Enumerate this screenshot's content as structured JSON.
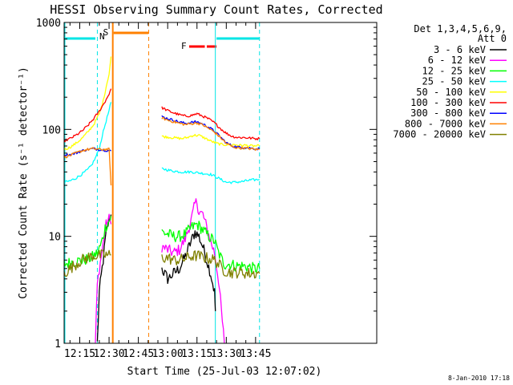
{
  "chart_data": {
    "type": "line",
    "title": "HESSI Observing Summary Count Rates, Corrected",
    "xlabel": "Start Time (25-Jul-03 12:07:02)",
    "ylabel": "Corrected Count Rate (s⁻¹ detector⁻¹)",
    "footer": "8-Jan-2010 17:18",
    "x_unit": "minutes since 12:00 UT",
    "xlim": [
      7.0,
      167.0
    ],
    "ylim": [
      1,
      1000
    ],
    "yscale": "log",
    "x_ticks": [
      {
        "label": "12:15",
        "x": 15
      },
      {
        "label": "12:30",
        "x": 30
      },
      {
        "label": "12:45",
        "x": 45
      },
      {
        "label": "13:00",
        "x": 60
      },
      {
        "label": "13:15",
        "x": 75
      },
      {
        "label": "13:30",
        "x": 90
      },
      {
        "label": "13:45",
        "x": 105
      }
    ],
    "y_ticks": [
      {
        "label": "1",
        "y": 1
      },
      {
        "label": "10",
        "y": 10
      },
      {
        "label": "100",
        "y": 100
      },
      {
        "label": "1000",
        "y": 1000
      }
    ],
    "legend": {
      "header": "Det 1,3,4,5,6,9,",
      "header2": "Att 0",
      "placement": "right"
    },
    "flags": {
      "night_color": "#00e5e5",
      "saa_color": "#ff8000",
      "flare_color": "#ff0000",
      "night_label": "N",
      "saa_label": "S",
      "flare_label": "F",
      "night_bars": [
        [
          7.0,
          23.0
        ],
        [
          85.0,
          107.0
        ]
      ],
      "saa_bars": [
        [
          32.3,
          50.2
        ]
      ],
      "flare_bars": [
        [
          71.0,
          79.0
        ],
        [
          80.0,
          85.0
        ]
      ],
      "night_lines": [
        7.2,
        24.0,
        84.4,
        107.0
      ],
      "saa_lines": [
        31.9,
        50.3
      ]
    },
    "series": [
      {
        "name": "3 - 6 keV",
        "color": "#000000",
        "segments": [
          [
            [
              24.0,
              1.0
            ],
            [
              25,
              3
            ],
            [
              27,
              6
            ],
            [
              28,
              9
            ],
            [
              29,
              12
            ],
            [
              30,
              14
            ],
            [
              31.0,
              16
            ]
          ],
          [
            [
              57.0,
              5.0
            ],
            [
              60,
              4.0
            ],
            [
              63,
              4.5
            ],
            [
              66,
              5.0
            ],
            [
              69,
              6.5
            ],
            [
              72,
              9.0
            ],
            [
              74,
              11.0
            ],
            [
              76,
              10.0
            ],
            [
              78,
              8.0
            ],
            [
              80,
              6.0
            ],
            [
              82,
              4.5
            ],
            [
              84,
              3.0
            ],
            [
              84.4,
              2.0
            ]
          ]
        ]
      },
      {
        "name": "6 - 12 keV",
        "color": "#ff00ff",
        "segments": [
          [
            [
              23.0,
              1.0
            ],
            [
              24,
              3.5
            ],
            [
              25,
              5.0
            ],
            [
              26,
              6.5
            ],
            [
              27,
              8.5
            ],
            [
              28,
              12.0
            ],
            [
              29,
              13.5
            ],
            [
              30,
              14.5
            ],
            [
              31.0,
              13.0
            ]
          ],
          [
            [
              57.0,
              8.0
            ],
            [
              60,
              7.5
            ],
            [
              63,
              7.0
            ],
            [
              66,
              7.5
            ],
            [
              69,
              9.5
            ],
            [
              72,
              14.0
            ],
            [
              74,
              20.0
            ],
            [
              75,
              21.0
            ],
            [
              76,
              17.0
            ],
            [
              78,
              16.0
            ],
            [
              80,
              12.0
            ],
            [
              82,
              9.0
            ],
            [
              84,
              7.0
            ],
            [
              86,
              4.0
            ],
            [
              89,
              1.0
            ]
          ]
        ]
      },
      {
        "name": "12 - 25 keV",
        "color": "#00ff00",
        "segments": [
          [
            [
              7.0,
              5.5
            ],
            [
              12,
              5.8
            ],
            [
              17,
              6.0
            ],
            [
              21,
              6.3
            ],
            [
              24,
              7.0
            ],
            [
              26,
              8.5
            ],
            [
              28,
              12.0
            ],
            [
              30,
              14.0
            ],
            [
              31.0,
              15.5
            ]
          ],
          [
            [
              57.0,
              11.0
            ],
            [
              60,
              10.5
            ],
            [
              63,
              10.0
            ],
            [
              66,
              10.0
            ],
            [
              69,
              10.5
            ],
            [
              72,
              12.0
            ],
            [
              75,
              13.0
            ],
            [
              78,
              11.5
            ],
            [
              81,
              10.0
            ],
            [
              84,
              9.0
            ],
            [
              86,
              7.0
            ],
            [
              89,
              5.5
            ],
            [
              92,
              5.5
            ],
            [
              95,
              5.3
            ],
            [
              98,
              5.3
            ],
            [
              101,
              5.2
            ],
            [
              104,
              5.0
            ],
            [
              107,
              5.0
            ]
          ]
        ]
      },
      {
        "name": "25 - 50 keV",
        "color": "#00ffff",
        "segments": [
          [
            [
              7.0,
              32
            ],
            [
              10,
              33
            ],
            [
              13,
              35
            ],
            [
              16,
              38
            ],
            [
              19,
              42
            ],
            [
              21,
              46
            ],
            [
              23,
              54
            ],
            [
              25,
              66
            ],
            [
              27,
              95
            ],
            [
              28.5,
              120
            ],
            [
              30,
              150
            ],
            [
              31.0,
              180
            ]
          ],
          [
            [
              57.0,
              43
            ],
            [
              62,
              41
            ],
            [
              67,
              40
            ],
            [
              72,
              40
            ],
            [
              77,
              39
            ],
            [
              82,
              38
            ],
            [
              86,
              35
            ],
            [
              90,
              32
            ],
            [
              94,
              32
            ],
            [
              98,
              32.5
            ],
            [
              102,
              33.5
            ],
            [
              107,
              34
            ]
          ]
        ]
      },
      {
        "name": "50 - 100 keV",
        "color": "#ffff00",
        "segments": [
          [
            [
              7.0,
              65
            ],
            [
              10,
              68
            ],
            [
              13,
              74
            ],
            [
              16,
              82
            ],
            [
              19,
              94
            ],
            [
              22,
              110
            ],
            [
              25,
              140
            ],
            [
              27,
              185
            ],
            [
              28.5,
              250
            ],
            [
              30,
              330
            ],
            [
              31.0,
              480
            ]
          ],
          [
            [
              57.0,
              86
            ],
            [
              62,
              84
            ],
            [
              67,
              82
            ],
            [
              70,
              84
            ],
            [
              73,
              88
            ],
            [
              76,
              88
            ],
            [
              79,
              83
            ],
            [
              82,
              78
            ],
            [
              85,
              74
            ],
            [
              88,
              72
            ],
            [
              91,
              72
            ],
            [
              94,
              72
            ],
            [
              97,
              71
            ],
            [
              100,
              71
            ],
            [
              103,
              70
            ],
            [
              107,
              70
            ]
          ]
        ]
      },
      {
        "name": "100 - 300 keV",
        "color": "#ff0000",
        "segments": [
          [
            [
              7.0,
              78
            ],
            [
              10,
              82
            ],
            [
              13,
              88
            ],
            [
              16,
              96
            ],
            [
              19,
              108
            ],
            [
              22,
              125
            ],
            [
              25,
              148
            ],
            [
              27,
              170
            ],
            [
              28.5,
              190
            ],
            [
              30,
              215
            ],
            [
              31.0,
              240
            ]
          ],
          [
            [
              57.0,
              160
            ],
            [
              60,
              150
            ],
            [
              63,
              143
            ],
            [
              66,
              137
            ],
            [
              69,
              133
            ],
            [
              72,
              135
            ],
            [
              75,
              140
            ],
            [
              78,
              133
            ],
            [
              81,
              125
            ],
            [
              84,
              115
            ],
            [
              87,
              102
            ],
            [
              90,
              92
            ],
            [
              93,
              86
            ],
            [
              96,
              84
            ],
            [
              99,
              84
            ],
            [
              102,
              83
            ],
            [
              105,
              82
            ],
            [
              107,
              82
            ]
          ]
        ]
      },
      {
        "name": "300 - 800 keV",
        "color": "#0000ff",
        "segments": [
          [
            [
              7.0,
              58
            ],
            [
              10,
              58
            ],
            [
              13,
              60
            ],
            [
              16,
              63
            ],
            [
              19,
              65
            ],
            [
              22,
              66
            ],
            [
              25,
              65
            ],
            [
              28,
              64
            ],
            [
              31.0,
              63
            ]
          ],
          [
            [
              57.0,
              132
            ],
            [
              60,
              126
            ],
            [
              63,
              122
            ],
            [
              66,
              117
            ],
            [
              69,
              114
            ],
            [
              72,
              116
            ],
            [
              75,
              118
            ],
            [
              78,
              112
            ],
            [
              81,
              105
            ],
            [
              84,
              96
            ],
            [
              87,
              85
            ],
            [
              90,
              75
            ],
            [
              93,
              70
            ],
            [
              96,
              68
            ],
            [
              99,
              68
            ],
            [
              102,
              67
            ],
            [
              105,
              66
            ],
            [
              107,
              66
            ]
          ]
        ]
      },
      {
        "name": "800 - 7000 keV",
        "color": "#ff8000",
        "segments": [
          [
            [
              7.0,
              55
            ],
            [
              10,
              57
            ],
            [
              13,
              60
            ],
            [
              16,
              63
            ],
            [
              19,
              65
            ],
            [
              22,
              66
            ],
            [
              25,
              65
            ],
            [
              28,
              65
            ],
            [
              30,
              65
            ],
            [
              31.0,
              30
            ]
          ],
          [
            [
              57.0,
              128
            ],
            [
              60,
              122
            ],
            [
              63,
              118
            ],
            [
              66,
              114
            ],
            [
              69,
              111
            ],
            [
              72,
              113
            ],
            [
              75,
              115
            ],
            [
              78,
              110
            ],
            [
              81,
              102
            ],
            [
              84,
              94
            ],
            [
              87,
              84
            ],
            [
              90,
              74
            ],
            [
              93,
              69
            ],
            [
              96,
              67
            ],
            [
              99,
              67
            ],
            [
              102,
              66
            ],
            [
              105,
              65
            ],
            [
              107,
              65
            ]
          ]
        ]
      },
      {
        "name": "7000 - 20000 keV",
        "color": "#808000",
        "segments": [
          [
            [
              7.0,
              4.5
            ],
            [
              10,
              5.0
            ],
            [
              13,
              5.5
            ],
            [
              16,
              6.0
            ],
            [
              19,
              6.3
            ],
            [
              22,
              6.6
            ],
            [
              25,
              6.6
            ],
            [
              28,
              6.7
            ],
            [
              31.0,
              6.7
            ]
          ],
          [
            [
              57.0,
              6.3
            ],
            [
              60,
              6.3
            ],
            [
              63,
              6.0
            ],
            [
              66,
              6.0
            ],
            [
              69,
              6.2
            ],
            [
              72,
              6.5
            ],
            [
              75,
              6.6
            ],
            [
              78,
              6.4
            ],
            [
              81,
              6.2
            ],
            [
              84,
              6.0
            ],
            [
              86,
              5.5
            ],
            [
              89,
              4.8
            ],
            [
              92,
              4.6
            ],
            [
              95,
              4.6
            ],
            [
              98,
              4.6
            ],
            [
              101,
              4.5
            ],
            [
              104,
              4.5
            ],
            [
              107,
              4.5
            ]
          ]
        ]
      }
    ]
  }
}
